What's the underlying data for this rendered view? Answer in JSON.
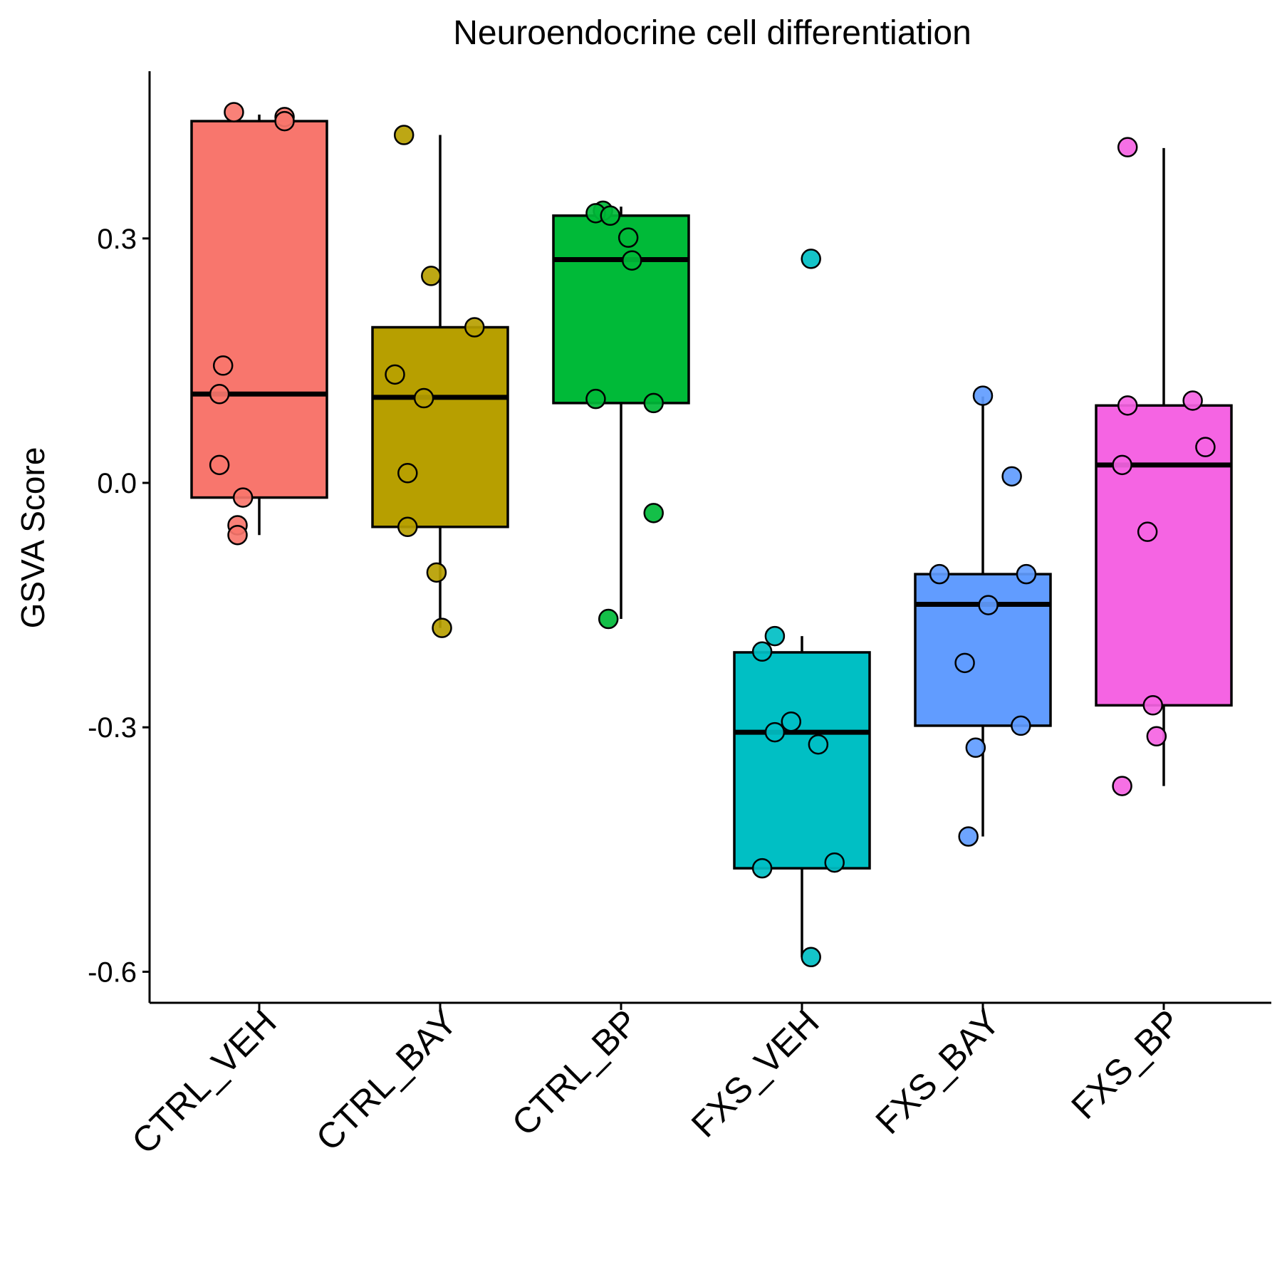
{
  "chart_data": {
    "type": "box",
    "title": "Neuroendocrine cell differentiation",
    "xlabel": "",
    "ylabel": "GSVA Score",
    "ylim": [
      -0.63,
      0.5
    ],
    "yticks": [
      0.3,
      0.0,
      -0.3,
      -0.6
    ],
    "ytick_labels": [
      "0.3",
      "0.0",
      "-0.3",
      "-0.6"
    ],
    "categories": [
      "CTRL_VEH",
      "CTRL_BAY",
      "CTRL_BP",
      "FXS_VEH",
      "FXS_BAY",
      "FXS_BP"
    ],
    "colors": [
      "#F8766D",
      "#B79F00",
      "#00BA38",
      "#00BFC4",
      "#619CFF",
      "#F564E3"
    ],
    "boxes": [
      {
        "whisker_low": -0.064,
        "q1": -0.018,
        "median": 0.109,
        "q3": 0.444,
        "whisker_high": 0.452
      },
      {
        "whisker_low": -0.178,
        "q1": -0.054,
        "median": 0.105,
        "q3": 0.191,
        "whisker_high": 0.427
      },
      {
        "whisker_low": -0.167,
        "q1": 0.098,
        "median": 0.274,
        "q3": 0.328,
        "whisker_high": 0.339
      },
      {
        "whisker_low": -0.582,
        "q1": -0.473,
        "median": -0.306,
        "q3": -0.208,
        "whisker_high": -0.188
      },
      {
        "whisker_low": -0.434,
        "q1": -0.298,
        "median": -0.149,
        "q3": -0.112,
        "whisker_high": 0.106
      },
      {
        "whisker_low": -0.372,
        "q1": -0.273,
        "median": 0.022,
        "q3": 0.095,
        "whisker_high": 0.411
      }
    ],
    "points": [
      [
        0.455,
        0.449,
        0.444,
        0.144,
        0.109,
        0.022,
        -0.018,
        -0.052,
        -0.064
      ],
      [
        0.427,
        0.254,
        0.191,
        0.133,
        0.104,
        0.012,
        -0.054,
        -0.11,
        -0.178
      ],
      [
        0.334,
        0.331,
        0.328,
        0.301,
        0.273,
        0.103,
        0.098,
        -0.037,
        -0.167
      ],
      [
        0.275,
        -0.188,
        -0.207,
        -0.293,
        -0.306,
        -0.321,
        -0.466,
        -0.473,
        -0.582
      ],
      [
        0.107,
        0.008,
        -0.112,
        -0.112,
        -0.15,
        -0.221,
        -0.298,
        -0.325,
        -0.434
      ],
      [
        0.412,
        0.101,
        0.095,
        0.044,
        0.022,
        -0.06,
        -0.273,
        -0.311,
        -0.372
      ]
    ],
    "point_offsets": [
      [
        -0.14,
        0.14,
        0.14,
        -0.2,
        -0.22,
        -0.22,
        -0.09,
        -0.12,
        -0.12
      ],
      [
        -0.2,
        -0.05,
        0.19,
        -0.25,
        -0.09,
        -0.18,
        -0.18,
        -0.02,
        0.01
      ],
      [
        -0.1,
        -0.14,
        -0.06,
        0.04,
        0.06,
        -0.14,
        0.18,
        0.18,
        -0.07
      ],
      [
        0.05,
        -0.15,
        -0.22,
        -0.06,
        -0.15,
        0.09,
        0.18,
        -0.22,
        0.05
      ],
      [
        0.0,
        0.16,
        -0.24,
        0.24,
        0.03,
        -0.1,
        0.21,
        -0.04,
        -0.08
      ],
      [
        -0.2,
        0.16,
        -0.2,
        0.23,
        -0.23,
        -0.09,
        -0.06,
        -0.04,
        -0.23
      ]
    ],
    "grid": false,
    "legend": "none"
  }
}
